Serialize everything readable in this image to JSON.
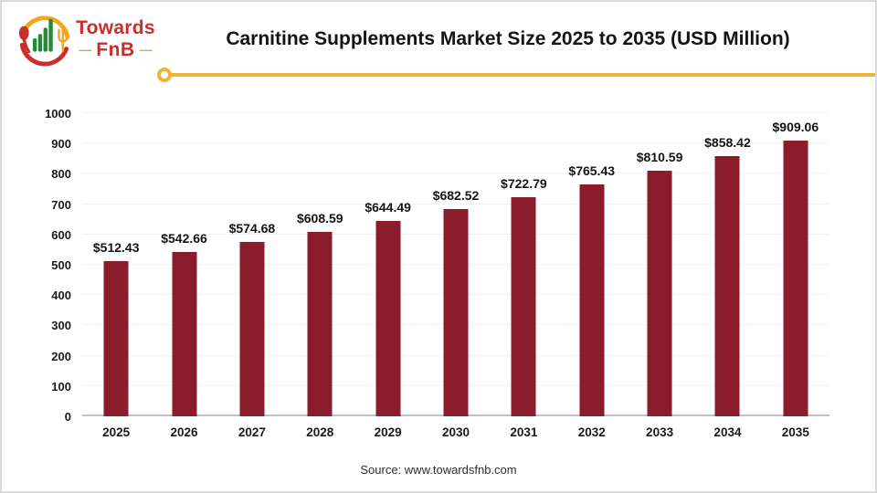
{
  "header": {
    "logo": {
      "line1": "Towards",
      "line2": "FnB",
      "dash": "—",
      "red": "#cb2c2c",
      "gold": "#f2a71b",
      "green": "#208a35"
    },
    "title": "Carnitine Supplements Market Size 2025 to 2035 (USD Million)",
    "accent_line_color": "#efb335"
  },
  "chart_data": {
    "type": "bar",
    "title": "Carnitine Supplements Market Size 2025 to 2035 (USD Million)",
    "categories": [
      "2025",
      "2026",
      "2027",
      "2028",
      "2029",
      "2030",
      "2031",
      "2032",
      "2033",
      "2034",
      "2035"
    ],
    "values": [
      512.43,
      542.66,
      574.68,
      608.59,
      644.49,
      682.52,
      722.79,
      765.43,
      810.59,
      858.42,
      909.06
    ],
    "data_labels": [
      "$512.43",
      "$542.66",
      "$574.68",
      "$608.59",
      "$644.49",
      "$682.52",
      "$722.79",
      "$765.43",
      "$810.59",
      "$858.42",
      "$909.06"
    ],
    "xlabel": "",
    "ylabel": "",
    "ylim": [
      0,
      1000
    ],
    "yticks": [
      0,
      100,
      200,
      300,
      400,
      500,
      600,
      700,
      800,
      900,
      1000
    ],
    "bar_color": "#8a1c2c",
    "gridline_color": "#f2f2f2",
    "axis_line_color": "#c2c2c2",
    "grid": true,
    "legend": false
  },
  "footer": {
    "source": "Source: www.towardsfnb.com"
  }
}
